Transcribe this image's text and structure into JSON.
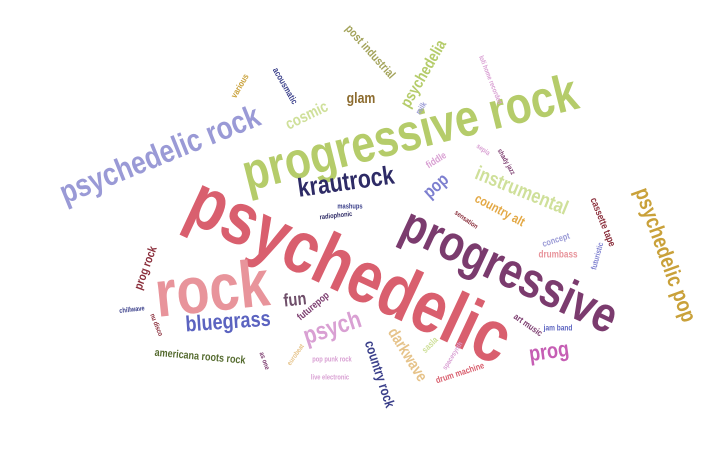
{
  "words": [
    {
      "text": "psychedelic",
      "color": "#d95f6e"
    },
    {
      "text": "progressive",
      "color": "#7b3b6e"
    },
    {
      "text": "progressive rock",
      "color": "#b5cc6a"
    },
    {
      "text": "rock",
      "color": "#e8949b"
    },
    {
      "text": "psychedelic rock",
      "color": "#9a9ad6"
    },
    {
      "text": "psychedelic pop",
      "color": "#c9a13a"
    },
    {
      "text": "krautrock",
      "color": "#2e2b66"
    },
    {
      "text": "instrumental",
      "color": "#cfe09a"
    },
    {
      "text": "bluegrass",
      "color": "#5b63c0"
    },
    {
      "text": "psych",
      "color": "#d9a0d3"
    },
    {
      "text": "prog",
      "color": "#c65eb4"
    },
    {
      "text": "psychedelia",
      "color": "#b5cc6a"
    },
    {
      "text": "pop",
      "color": "#7d7fcf"
    },
    {
      "text": "darkwave",
      "color": "#e6c38a"
    },
    {
      "text": "fun",
      "color": "#6f4f6a"
    },
    {
      "text": "country rock",
      "color": "#3a3f8a"
    },
    {
      "text": "country alt",
      "color": "#e3a844"
    },
    {
      "text": "glam",
      "color": "#8c6b2e"
    },
    {
      "text": "cosmic",
      "color": "#cfe09a"
    },
    {
      "text": "post industrial",
      "color": "#a3a35a"
    },
    {
      "text": "acousmatic",
      "color": "#3a3f8a"
    },
    {
      "text": "various",
      "color": "#c9a13a"
    },
    {
      "text": "prog rock",
      "color": "#8a2e3b"
    },
    {
      "text": "americana roots rock",
      "color": "#556b2f"
    },
    {
      "text": "cassette tape",
      "color": "#8a2e3b"
    },
    {
      "text": "futuristic",
      "color": "#7d7fcf"
    },
    {
      "text": "drumbass",
      "color": "#e8949b"
    },
    {
      "text": "fiddle",
      "color": "#d9a0d3"
    },
    {
      "text": "concept",
      "color": "#9a9ad6"
    },
    {
      "text": "futurepop",
      "color": "#7b3b6e"
    },
    {
      "text": "drum machine",
      "color": "#d95f6e"
    },
    {
      "text": "sasla",
      "color": "#cfe09a"
    },
    {
      "text": "art music",
      "color": "#7b3b6e"
    },
    {
      "text": "jam band",
      "color": "#5b63c0"
    },
    {
      "text": "mashups",
      "color": "#3a3f8a"
    },
    {
      "text": "radiophonic",
      "color": "#2e2b66"
    },
    {
      "text": "sensation",
      "color": "#8a2e3b"
    },
    {
      "text": "milk",
      "color": "#9a9ad6"
    },
    {
      "text": "lofi home recorded",
      "color": "#d9a0d3"
    },
    {
      "text": "sepia",
      "color": "#d9a0d3"
    },
    {
      "text": "shady jazz",
      "color": "#7b3b6e"
    },
    {
      "text": "chillwave",
      "color": "#3a3f8a"
    },
    {
      "text": "nu disco",
      "color": "#8a2e3b"
    },
    {
      "text": "as one",
      "color": "#7b3b6e"
    },
    {
      "text": "pop punk rock",
      "color": "#d9a0d3"
    },
    {
      "text": "live electronic",
      "color": "#d9a0d3"
    },
    {
      "text": "eurobeat",
      "color": "#e6c38a"
    },
    {
      "text": "spacesynth",
      "color": "#d9a0d3"
    }
  ]
}
